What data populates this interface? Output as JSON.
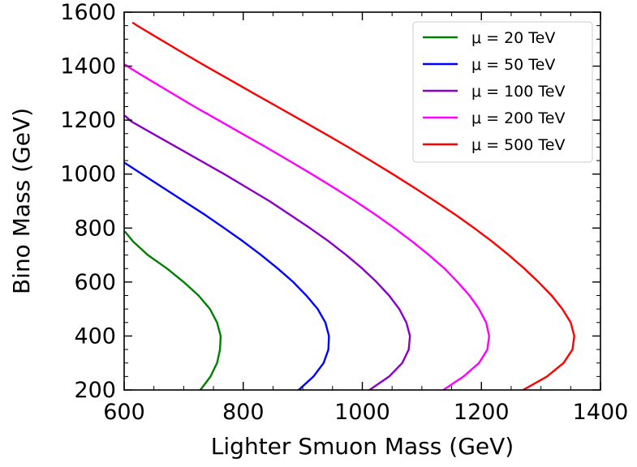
{
  "chart_data": {
    "type": "line",
    "title": "",
    "xlabel": "Lighter Smuon Mass (GeV)",
    "ylabel": "Bino Mass (GeV)",
    "xlim": [
      600,
      1400
    ],
    "ylim": [
      200,
      1600
    ],
    "xticks": [
      600,
      800,
      1000,
      1200,
      1400
    ],
    "xtick_labels": [
      "600",
      "800",
      "1000",
      "1200",
      "1400"
    ],
    "yticks": [
      200,
      400,
      600,
      800,
      1000,
      1200,
      1400,
      1600
    ],
    "ytick_labels": [
      "200",
      "400",
      "600",
      "800",
      "1000",
      "1200",
      "1400",
      "1600"
    ],
    "grid": false,
    "legend_position": "top-right",
    "series": [
      {
        "name": "μ = 20 TeV",
        "color": "#008000",
        "x": [
          728,
          745,
          756,
          761,
          762,
          756,
          744,
          725,
          700,
          672,
          640,
          615,
          602
        ],
        "y": [
          200,
          250,
          300,
          350,
          400,
          450,
          500,
          550,
          600,
          650,
          700,
          750,
          785
        ]
      },
      {
        "name": "μ = 50 TeV",
        "color": "#0000ff",
        "x": [
          893,
          918,
          935,
          943,
          944,
          938,
          925,
          906,
          884,
          858,
          830,
          800,
          768,
          735,
          700,
          665,
          630,
          602
        ],
        "y": [
          200,
          250,
          300,
          350,
          400,
          450,
          500,
          550,
          600,
          650,
          700,
          750,
          800,
          850,
          900,
          950,
          1000,
          1040
        ]
      },
      {
        "name": "μ = 100 TeV",
        "color": "#8b00c8",
        "x": [
          1012,
          1045,
          1067,
          1078,
          1080,
          1074,
          1062,
          1045,
          1024,
          1000,
          973,
          944,
          912,
          878,
          844,
          806,
          768,
          728,
          688,
          648,
          612,
          602
        ],
        "y": [
          200,
          250,
          300,
          350,
          400,
          450,
          500,
          550,
          600,
          650,
          700,
          750,
          800,
          850,
          900,
          950,
          1000,
          1050,
          1100,
          1150,
          1195,
          1215
        ]
      },
      {
        "name": "μ = 200 TeV",
        "color": "#ff00ff",
        "x": [
          1136,
          1170,
          1196,
          1210,
          1213,
          1208,
          1196,
          1180,
          1160,
          1138,
          1112,
          1084,
          1054,
          1022,
          988,
          952,
          915,
          877,
          838,
          798,
          758,
          718,
          680,
          642,
          612,
          602
        ],
        "y": [
          200,
          250,
          300,
          350,
          400,
          450,
          500,
          550,
          600,
          650,
          700,
          750,
          800,
          850,
          900,
          950,
          1000,
          1050,
          1100,
          1150,
          1200,
          1250,
          1300,
          1350,
          1390,
          1405
        ]
      },
      {
        "name": "μ = 500 TeV",
        "color": "#ff0000",
        "x": [
          1270,
          1310,
          1338,
          1353,
          1356,
          1350,
          1336,
          1318,
          1296,
          1272,
          1246,
          1218,
          1188,
          1156,
          1122,
          1087,
          1051,
          1014,
          976,
          937,
          897,
          857,
          817,
          777,
          737,
          698,
          660,
          622,
          615
        ],
        "y": [
          200,
          250,
          300,
          350,
          400,
          450,
          500,
          550,
          600,
          650,
          700,
          750,
          800,
          850,
          900,
          950,
          1000,
          1050,
          1100,
          1150,
          1200,
          1250,
          1300,
          1350,
          1400,
          1450,
          1500,
          1550,
          1560
        ]
      }
    ]
  }
}
